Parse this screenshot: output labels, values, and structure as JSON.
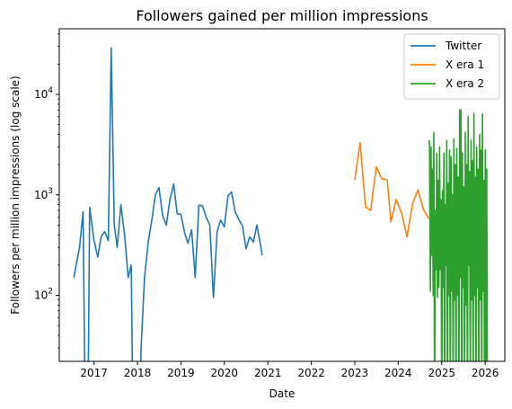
{
  "chart_data": {
    "type": "line",
    "title": "Followers gained per million impressions",
    "xlabel": "Date",
    "ylabel": "Followers per million impressions (log scale)",
    "yscale": "log",
    "xlim": [
      "2016-03-15",
      "2026-06-15"
    ],
    "ylim": [
      22,
      45000
    ],
    "grid": false,
    "legend_position": "top-right",
    "x_ticks": [
      "2017",
      "2018",
      "2019",
      "2020",
      "2021",
      "2022",
      "2023",
      "2024",
      "2025",
      "2026"
    ],
    "y_ticks": [
      {
        "value": 100,
        "base": "10",
        "exp": "2"
      },
      {
        "value": 1000,
        "base": "10",
        "exp": "3"
      },
      {
        "value": 10000,
        "base": "10",
        "exp": "4"
      }
    ],
    "series": [
      {
        "name": "Twitter",
        "color": "#1f77b4",
        "points": [
          [
            "2016-07-15",
            150
          ],
          [
            "2016-09-01",
            300
          ],
          [
            "2016-10-01",
            680
          ],
          [
            "2016-10-20",
            5
          ],
          [
            "2016-11-10",
            5
          ],
          [
            "2016-11-25",
            750
          ],
          [
            "2017-01-01",
            350
          ],
          [
            "2017-02-01",
            240
          ],
          [
            "2017-03-01",
            380
          ],
          [
            "2017-04-01",
            430
          ],
          [
            "2017-05-01",
            350
          ],
          [
            "2017-05-25",
            29000
          ],
          [
            "2017-06-20",
            500
          ],
          [
            "2017-07-15",
            300
          ],
          [
            "2017-08-15",
            800
          ],
          [
            "2017-09-15",
            400
          ],
          [
            "2017-10-15",
            150
          ],
          [
            "2017-11-10",
            200
          ],
          [
            "2017-11-25",
            5
          ],
          [
            "2018-01-15",
            5
          ],
          [
            "2018-02-01",
            30
          ],
          [
            "2018-03-01",
            150
          ],
          [
            "2018-04-01",
            340
          ],
          [
            "2018-05-01",
            550
          ],
          [
            "2018-06-01",
            1000
          ],
          [
            "2018-07-01",
            1180
          ],
          [
            "2018-08-01",
            620
          ],
          [
            "2018-09-01",
            500
          ],
          [
            "2018-10-01",
            900
          ],
          [
            "2018-11-01",
            1280
          ],
          [
            "2018-12-01",
            650
          ],
          [
            "2019-01-01",
            640
          ],
          [
            "2019-02-01",
            420
          ],
          [
            "2019-03-01",
            330
          ],
          [
            "2019-04-01",
            450
          ],
          [
            "2019-05-01",
            150
          ],
          [
            "2019-06-01",
            790
          ],
          [
            "2019-07-01",
            780
          ],
          [
            "2019-08-01",
            600
          ],
          [
            "2019-09-01",
            500
          ],
          [
            "2019-10-01",
            95
          ],
          [
            "2019-11-01",
            430
          ],
          [
            "2019-12-01",
            560
          ],
          [
            "2020-01-01",
            480
          ],
          [
            "2020-02-01",
            980
          ],
          [
            "2020-03-01",
            1070
          ],
          [
            "2020-04-01",
            680
          ],
          [
            "2020-05-01",
            570
          ],
          [
            "2020-06-01",
            490
          ],
          [
            "2020-07-01",
            290
          ],
          [
            "2020-08-01",
            380
          ],
          [
            "2020-09-01",
            340
          ],
          [
            "2020-10-01",
            500
          ],
          [
            "2020-11-15",
            250
          ]
        ]
      },
      {
        "name": "X era 1",
        "color": "#ff7f0e",
        "points": [
          [
            "2023-01-01",
            1400
          ],
          [
            "2023-02-15",
            3300
          ],
          [
            "2023-04-01",
            760
          ],
          [
            "2023-05-15",
            700
          ],
          [
            "2023-07-01",
            1900
          ],
          [
            "2023-08-15",
            1450
          ],
          [
            "2023-10-01",
            1400
          ],
          [
            "2023-11-01",
            540
          ],
          [
            "2023-12-15",
            900
          ],
          [
            "2024-02-01",
            650
          ],
          [
            "2024-03-15",
            380
          ],
          [
            "2024-05-01",
            820
          ],
          [
            "2024-06-15",
            1120
          ],
          [
            "2024-08-01",
            710
          ],
          [
            "2024-09-15",
            580
          ]
        ]
      },
      {
        "name": "X era 2",
        "color": "#2ca02c",
        "points": [
          [
            "2024-09-20",
            3500
          ],
          [
            "2024-09-27",
            110
          ],
          [
            "2024-10-03",
            3000
          ],
          [
            "2024-10-09",
            250
          ],
          [
            "2024-10-15",
            1800
          ],
          [
            "2024-10-21",
            100
          ],
          [
            "2024-10-27",
            4200
          ],
          [
            "2024-11-02",
            5
          ],
          [
            "2024-11-08",
            700
          ],
          [
            "2024-11-14",
            180
          ],
          [
            "2024-11-20",
            2600
          ],
          [
            "2024-11-26",
            95
          ],
          [
            "2024-12-02",
            1400
          ],
          [
            "2024-12-08",
            120
          ],
          [
            "2024-12-14",
            3000
          ],
          [
            "2024-12-20",
            180
          ],
          [
            "2024-12-26",
            900
          ],
          [
            "2025-01-01",
            5
          ],
          [
            "2025-01-07",
            1100
          ],
          [
            "2025-01-13",
            120
          ],
          [
            "2025-01-19",
            2600
          ],
          [
            "2025-01-25",
            5
          ],
          [
            "2025-01-31",
            800
          ],
          [
            "2025-02-06",
            200
          ],
          [
            "2025-02-12",
            3500
          ],
          [
            "2025-02-18",
            5
          ],
          [
            "2025-02-24",
            1300
          ],
          [
            "2025-03-02",
            100
          ],
          [
            "2025-03-08",
            2800
          ],
          [
            "2025-03-14",
            5
          ],
          [
            "2025-03-20",
            2400
          ],
          [
            "2025-03-26",
            110
          ],
          [
            "2025-04-01",
            1000
          ],
          [
            "2025-04-07",
            5
          ],
          [
            "2025-04-13",
            3600
          ],
          [
            "2025-04-19",
            90
          ],
          [
            "2025-04-25",
            2000
          ],
          [
            "2025-05-01",
            5
          ],
          [
            "2025-05-07",
            2900
          ],
          [
            "2025-05-13",
            100
          ],
          [
            "2025-05-19",
            1500
          ],
          [
            "2025-05-25",
            5
          ],
          [
            "2025-05-31",
            7000
          ],
          [
            "2025-06-06",
            150
          ],
          [
            "2025-06-12",
            7000
          ],
          [
            "2025-06-18",
            5
          ],
          [
            "2025-06-24",
            2600
          ],
          [
            "2025-06-30",
            120
          ],
          [
            "2025-07-06",
            1200
          ],
          [
            "2025-07-12",
            5
          ],
          [
            "2025-07-18",
            4200
          ],
          [
            "2025-07-24",
            80
          ],
          [
            "2025-07-30",
            2000
          ],
          [
            "2025-08-05",
            5
          ],
          [
            "2025-08-11",
            6000
          ],
          [
            "2025-08-17",
            200
          ],
          [
            "2025-08-23",
            1700
          ],
          [
            "2025-08-29",
            5
          ],
          [
            "2025-09-04",
            3500
          ],
          [
            "2025-09-10",
            90
          ],
          [
            "2025-09-16",
            2200
          ],
          [
            "2025-09-22",
            5
          ],
          [
            "2025-09-28",
            6500
          ],
          [
            "2025-10-04",
            100
          ],
          [
            "2025-10-10",
            1500
          ],
          [
            "2025-10-16",
            5
          ],
          [
            "2025-10-22",
            3000
          ],
          [
            "2025-10-28",
            120
          ],
          [
            "2025-11-03",
            1800
          ],
          [
            "2025-11-09",
            5
          ],
          [
            "2025-11-15",
            4000
          ],
          [
            "2025-11-21",
            90
          ],
          [
            "2025-11-27",
            2800
          ],
          [
            "2025-12-03",
            5
          ],
          [
            "2025-12-09",
            6400
          ],
          [
            "2025-12-15",
            110
          ],
          [
            "2025-12-21",
            1400
          ],
          [
            "2025-12-27",
            5
          ],
          [
            "2026-01-02",
            2800
          ],
          [
            "2026-01-08",
            5
          ],
          [
            "2026-01-14",
            1800
          ],
          [
            "2026-01-20",
            5
          ]
        ]
      }
    ]
  }
}
